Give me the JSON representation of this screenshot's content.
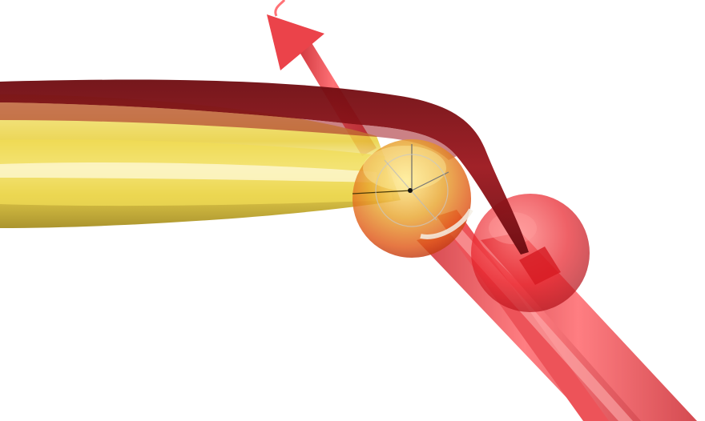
{
  "scene": {
    "background": "#ffffff",
    "colors": {
      "bone_yellow": "#e8cf3a",
      "bone_yellow_dark": "#b89a10",
      "muscle_dark_red": "#8e1219",
      "segment_red": "#e8232b",
      "segment_red_light": "#ff6b6b",
      "joint_orange": "#e0591a"
    }
  }
}
